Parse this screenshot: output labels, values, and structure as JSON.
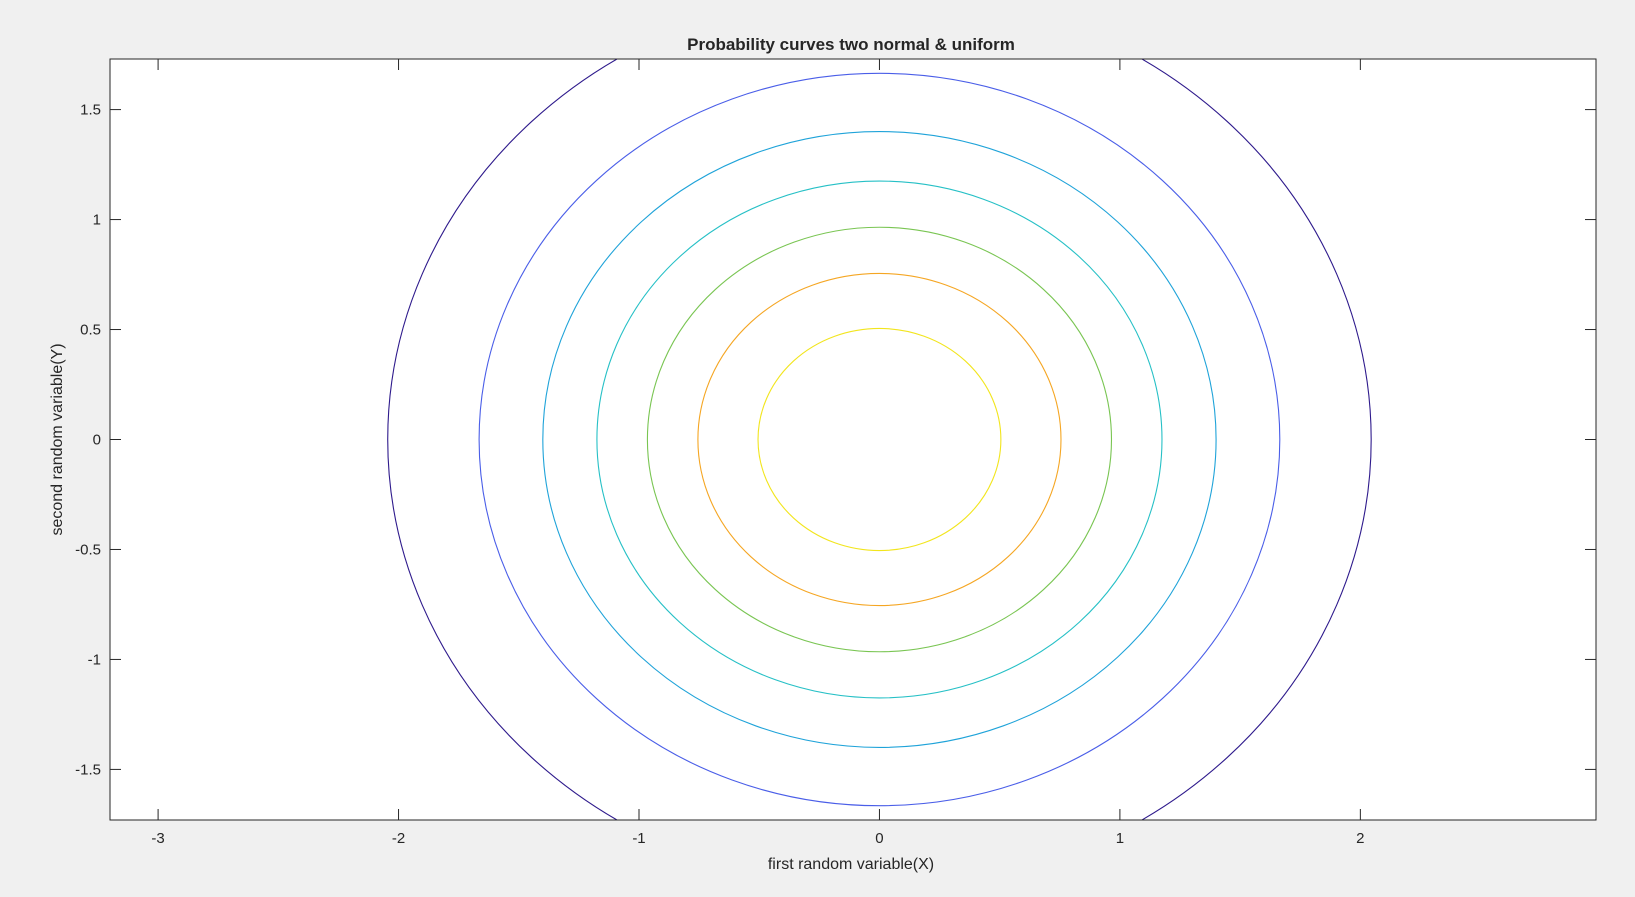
{
  "chart_data": {
    "type": "contour",
    "title": "Probability curves two normal & uniform",
    "xlabel": "first random variable(X)",
    "ylabel": "second random variable(Y)",
    "xlim": [
      -3.2,
      2.98
    ],
    "ylim": [
      -1.73,
      1.73
    ],
    "xticks": [
      -3,
      -2,
      -1,
      0,
      1,
      2
    ],
    "yticks": [
      -1.5,
      -1,
      -0.5,
      0,
      0.5,
      1,
      1.5
    ],
    "xtick_labels": [
      "-3",
      "-2",
      "-1",
      "0",
      "1",
      "2"
    ],
    "ytick_labels": [
      "-1.5",
      "-1",
      "-0.5",
      "0",
      "0.5",
      "1",
      "1.5"
    ],
    "grid": false,
    "contours": [
      {
        "center": [
          0,
          0
        ],
        "radius": 0.505,
        "color": "#f2e51d"
      },
      {
        "center": [
          0,
          0
        ],
        "radius": 0.755,
        "color": "#f5a623"
      },
      {
        "center": [
          0,
          0
        ],
        "radius": 0.965,
        "color": "#79c552"
      },
      {
        "center": [
          0,
          0
        ],
        "radius": 1.175,
        "color": "#26c0c6"
      },
      {
        "center": [
          0,
          0
        ],
        "radius": 1.4,
        "color": "#1fa3d9"
      },
      {
        "center": [
          0,
          0
        ],
        "radius": 1.665,
        "color": "#4a5ee8"
      },
      {
        "center": [
          0,
          0
        ],
        "radius": 2.045,
        "color": "#2e1a8c"
      }
    ]
  }
}
